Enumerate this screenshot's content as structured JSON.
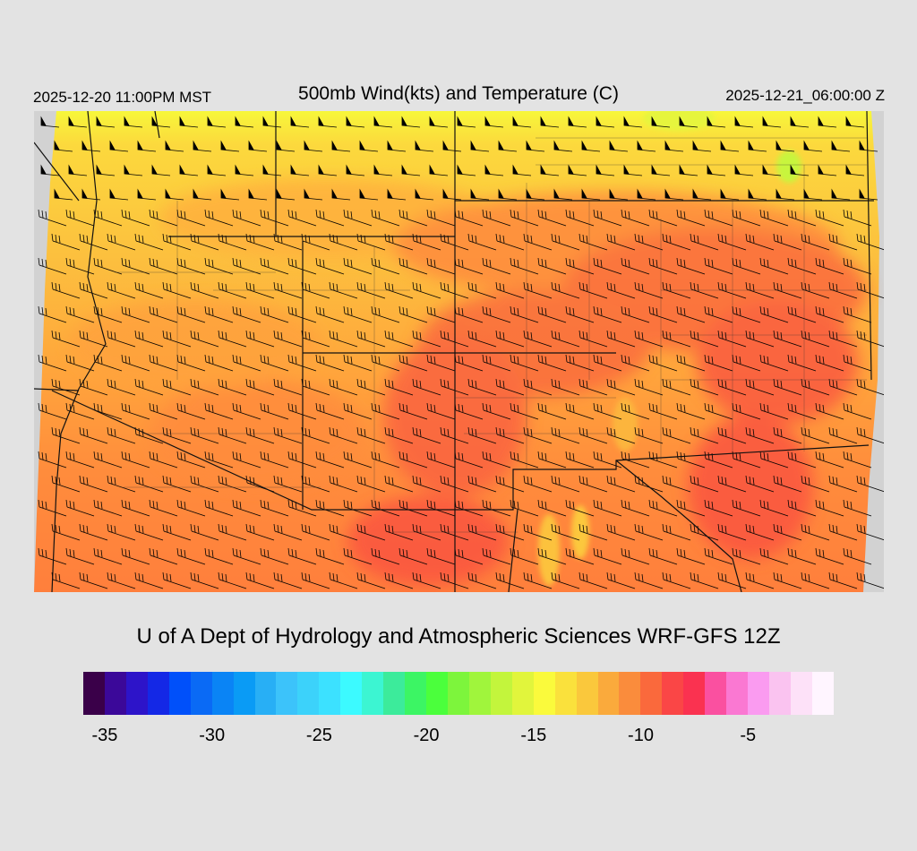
{
  "header": {
    "left": "2025-12-20 11:00PM MST",
    "title": "500mb Wind(kts) and Temperature (C)",
    "right": "2025-12-21_06:00:00 Z"
  },
  "map": {
    "region": "Arizona, New Mexico, Colorado, Utah and surrounding states",
    "field": "500mb temperature shaded, wind barbs in knots",
    "background_colors": {
      "warm_south": "#ff8c3c",
      "mid": "#ffaa3c",
      "cool_north": "#fccc3e",
      "coolest_north": "#f7f73a",
      "warmest": "#fa4646",
      "outside_domain": "#d2d2d2"
    }
  },
  "credit": "U of A Dept of Hydrology and Atmospheric Sciences WRF-GFS 12Z",
  "colorbar": {
    "min": -36,
    "max": -1,
    "colors": [
      "#3a0049",
      "#3b0899",
      "#2d14c9",
      "#1428e6",
      "#0050fa",
      "#0a6af5",
      "#0a84f5",
      "#0a9bf5",
      "#28aff5",
      "#3cc3fa",
      "#3cd2fa",
      "#3ce1ff",
      "#3cfaff",
      "#3cf5d2",
      "#3ceb9b",
      "#3cf564",
      "#4bff3c",
      "#7df53c",
      "#a0f53c",
      "#c3f53c",
      "#e1f53c",
      "#fafa3c",
      "#fae13c",
      "#fac83c",
      "#faaa3c",
      "#fa8c3c",
      "#fa693c",
      "#fa4646",
      "#fa3250",
      "#fa50a0",
      "#fa78d2",
      "#fa9bf0",
      "#fac3f0",
      "#fde1f8",
      "#fff5ff"
    ],
    "tick_labels": [
      {
        "label": "-35",
        "value": -35
      },
      {
        "label": "-30",
        "value": -30
      },
      {
        "label": "-25",
        "value": -25
      },
      {
        "label": "-20",
        "value": -20
      },
      {
        "label": "-15",
        "value": -15
      },
      {
        "label": "-10",
        "value": -10
      },
      {
        "label": "-5",
        "value": -5
      }
    ]
  }
}
